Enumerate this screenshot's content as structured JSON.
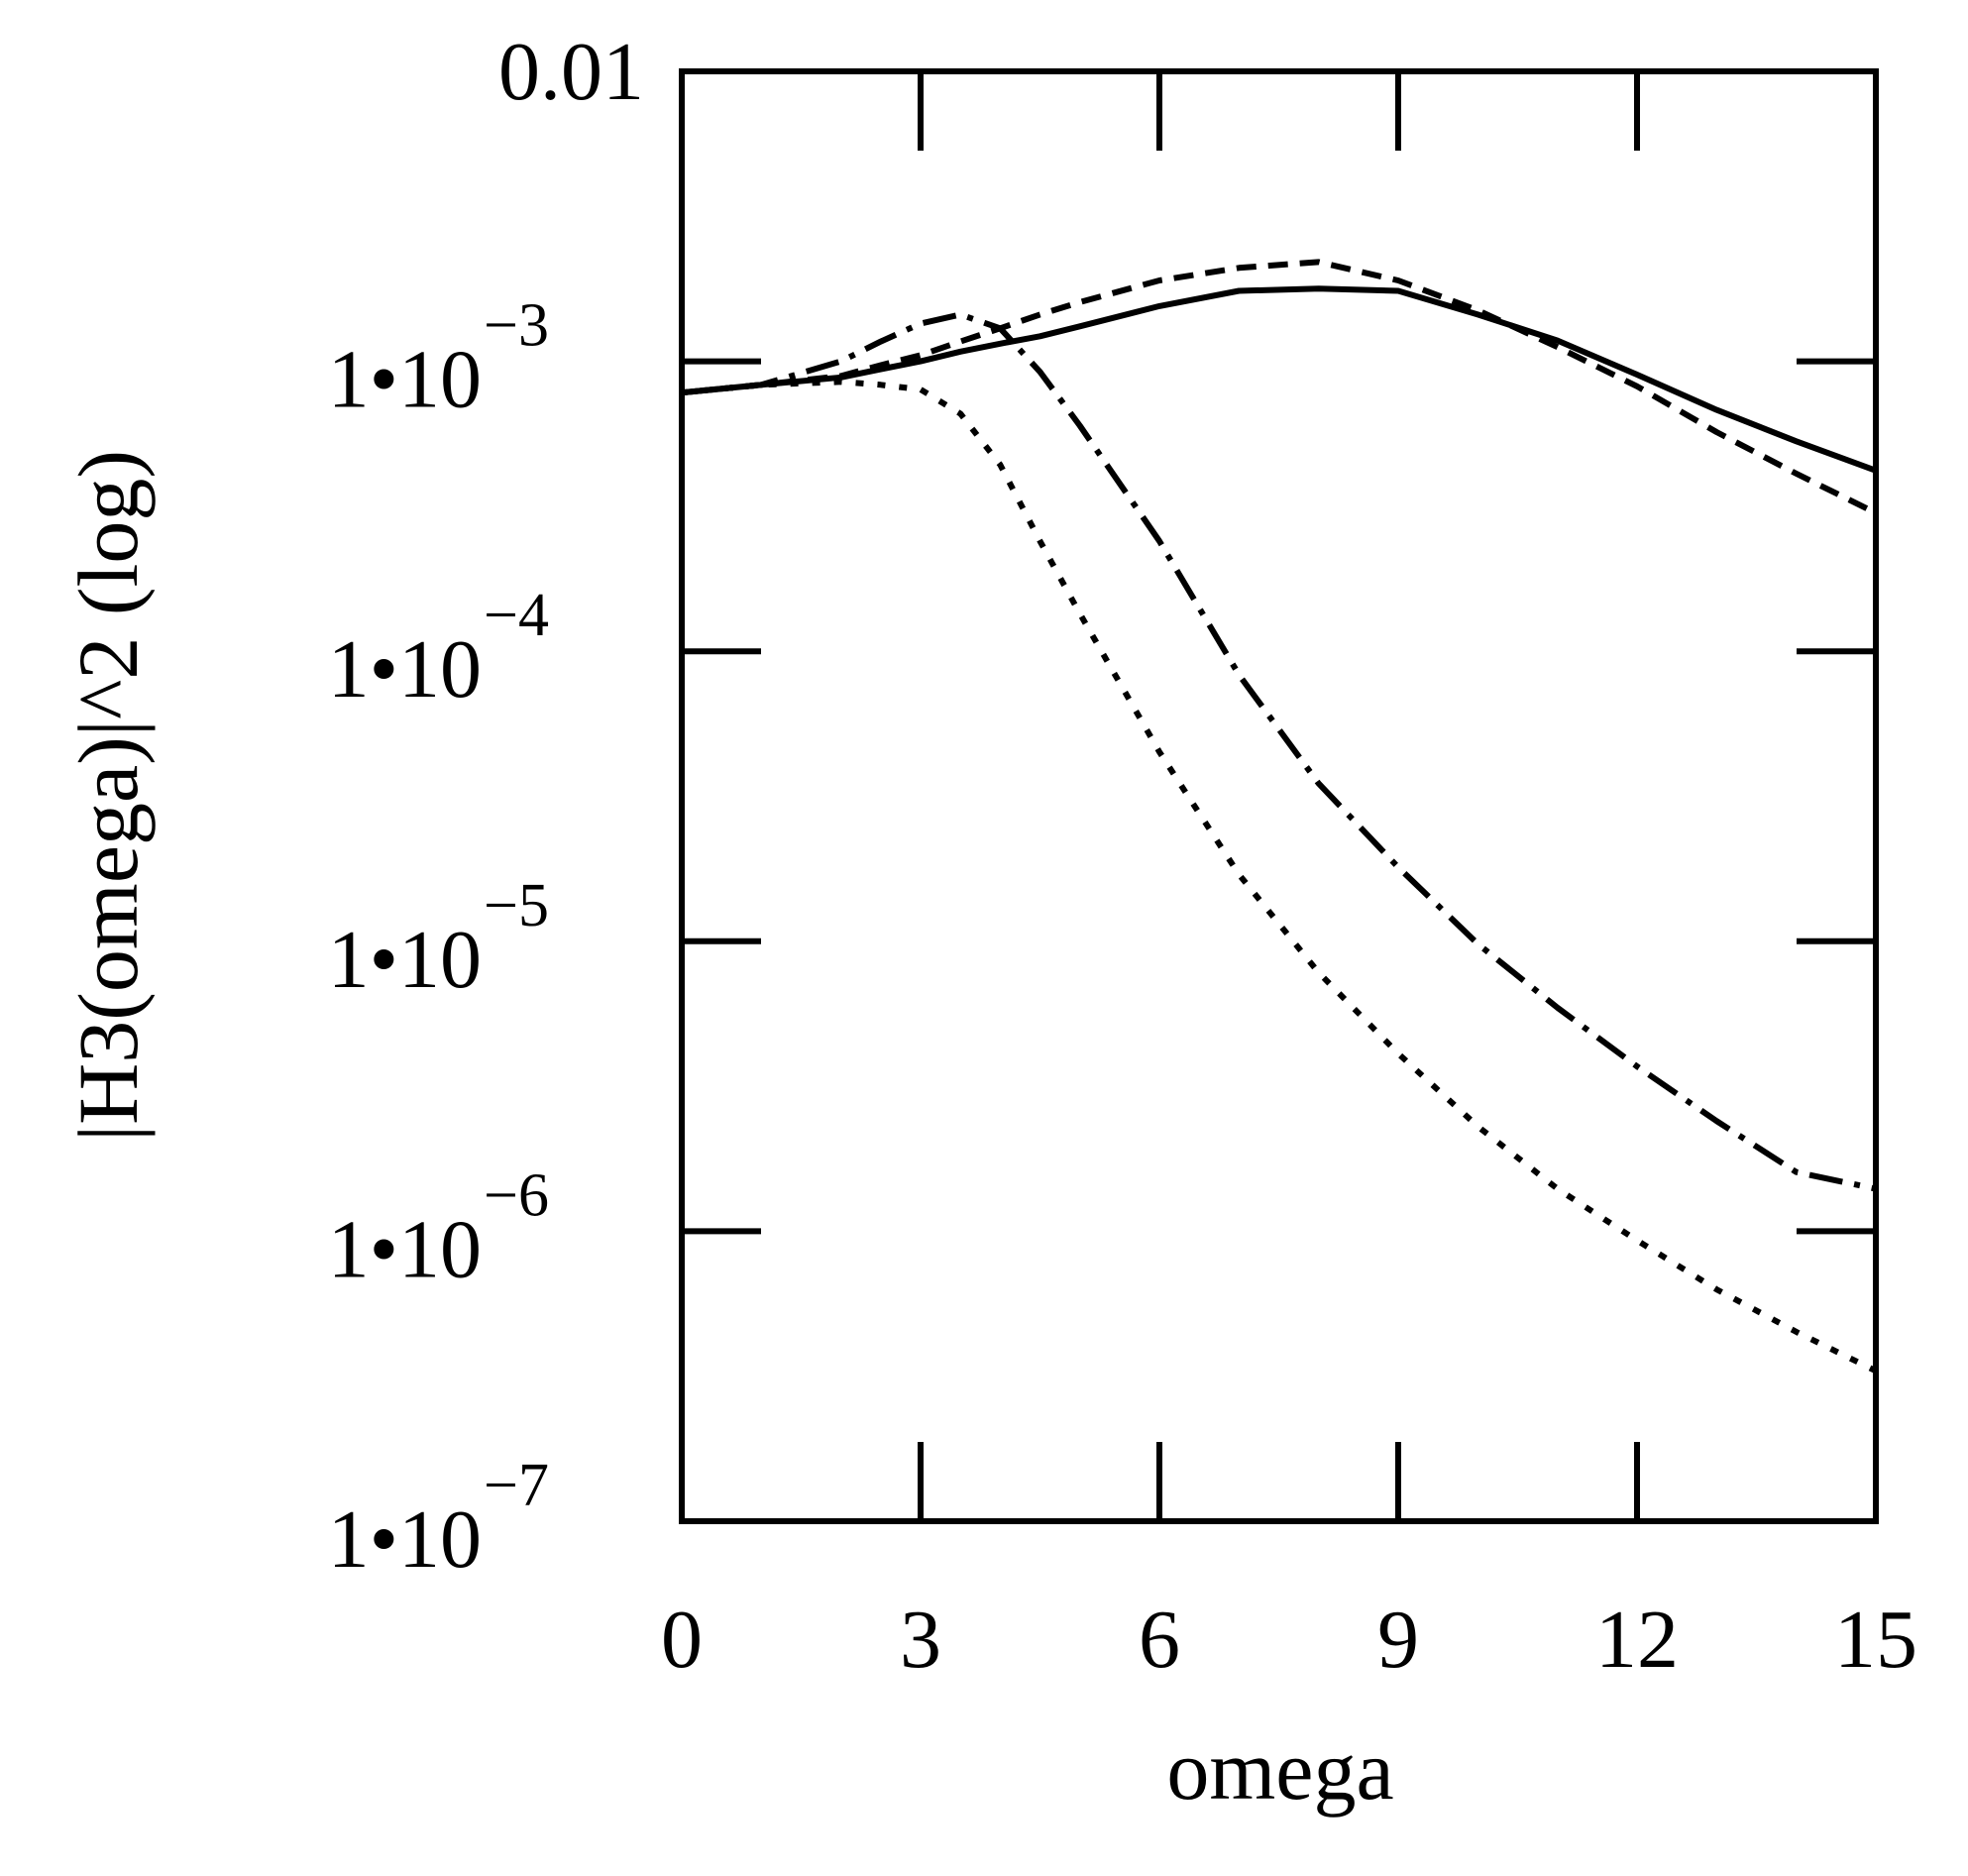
{
  "chart_data": {
    "type": "line",
    "title": "",
    "xlabel": "omega",
    "ylabel": "|H3(omega)|^2 (log)",
    "yscale": "log",
    "xlim": [
      0,
      15
    ],
    "ylim": [
      1e-07,
      0.01
    ],
    "grid": false,
    "x_ticks": [
      {
        "value": 0,
        "label": "0"
      },
      {
        "value": 3,
        "label": "3"
      },
      {
        "value": 6,
        "label": "6"
      },
      {
        "value": 9,
        "label": "9"
      },
      {
        "value": 12,
        "label": "12"
      },
      {
        "value": 15,
        "label": "15"
      }
    ],
    "y_ticks": [
      {
        "value": 0.01,
        "label": "0.01",
        "exponent": ""
      },
      {
        "value": 0.001,
        "label": "1•10",
        "exponent": "−3"
      },
      {
        "value": 0.0001,
        "label": "1•10",
        "exponent": "−4"
      },
      {
        "value": 1e-05,
        "label": "1•10",
        "exponent": "−5"
      },
      {
        "value": 1e-06,
        "label": "1•10",
        "exponent": "−6"
      },
      {
        "value": 1e-07,
        "label": "1•10",
        "exponent": "−7"
      }
    ],
    "x": [
      0,
      1,
      2,
      2.5,
      3,
      3.5,
      4,
      4.5,
      5,
      6,
      7,
      8,
      9,
      10,
      11,
      12,
      13,
      14,
      15
    ],
    "series": [
      {
        "name": "solid",
        "style": "solid",
        "values": [
          0.00078,
          0.00083,
          0.00088,
          0.00094,
          0.001,
          0.00108,
          0.00115,
          0.00122,
          0.00132,
          0.00155,
          0.00175,
          0.00178,
          0.00175,
          0.00145,
          0.00118,
          0.0009,
          0.00068,
          0.00053,
          0.00042
        ]
      },
      {
        "name": "dashed",
        "style": "dashed",
        "values": [
          0.00078,
          0.00083,
          0.00089,
          0.00097,
          0.00105,
          0.00117,
          0.0013,
          0.00145,
          0.0016,
          0.0019,
          0.0021,
          0.0022,
          0.0019,
          0.0015,
          0.00112,
          0.00082,
          0.00057,
          0.00041,
          0.0003
        ]
      },
      {
        "name": "dash-dot",
        "style": "dashdot",
        "values": [
          0.00078,
          0.00083,
          0.001,
          0.00117,
          0.00135,
          0.00145,
          0.0013,
          0.00092,
          0.0006,
          0.00024,
          8.3e-05,
          3.5e-05,
          1.8e-05,
          9.8e-06,
          5.9e-06,
          3.7e-06,
          2.4e-06,
          1.6e-06,
          1.4e-06
        ]
      },
      {
        "name": "dotted",
        "style": "dotted",
        "values": [
          0.00078,
          0.00083,
          0.00085,
          0.00083,
          0.0008,
          0.00066,
          0.00044,
          0.00024,
          0.000135,
          4.5e-05,
          1.7e-05,
          7.8e-06,
          4.1e-06,
          2.3e-06,
          1.4e-06,
          9.3e-07,
          6.3e-07,
          4.5e-07,
          3.3e-07
        ]
      }
    ]
  }
}
